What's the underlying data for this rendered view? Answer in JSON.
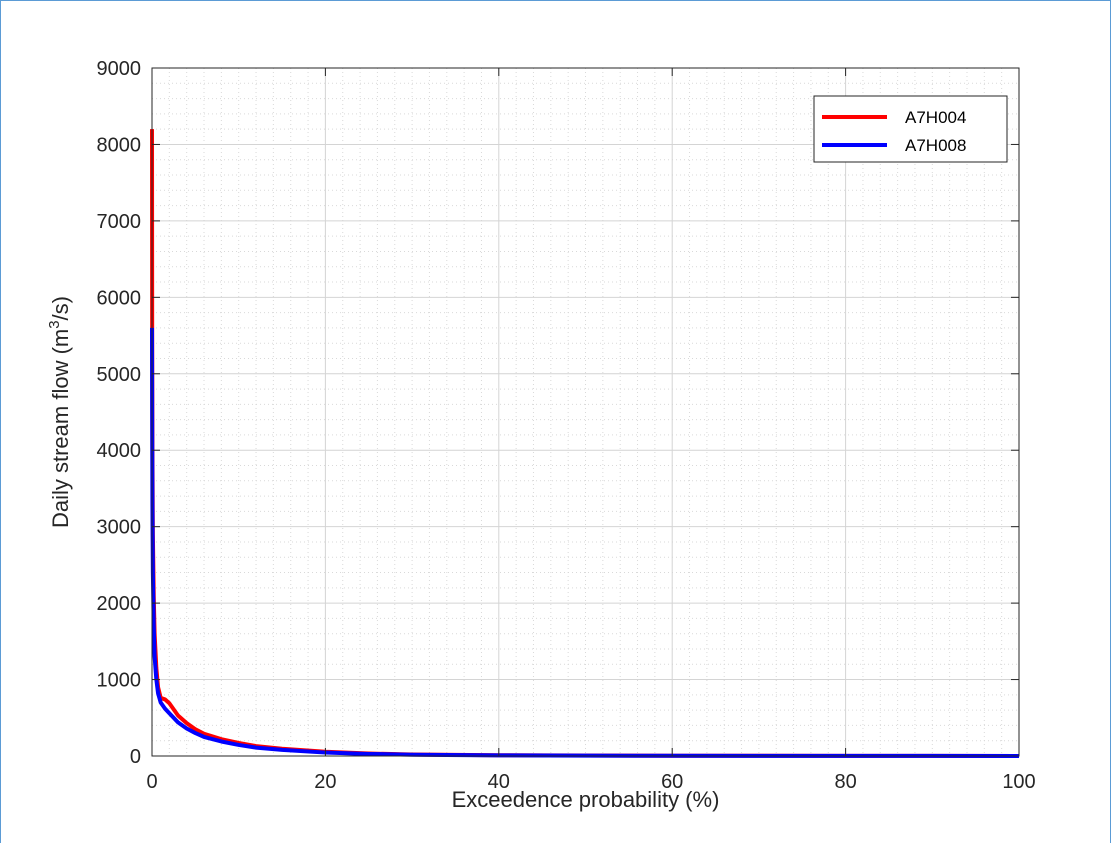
{
  "chart_data": {
    "type": "line",
    "title": "",
    "xlabel": "Exceedence probability (%)",
    "ylabel": {
      "prefix": "Daily stream flow (m",
      "superscript": "3",
      "suffix": "/s)"
    },
    "xlim": [
      0,
      100
    ],
    "ylim": [
      0,
      9000
    ],
    "x_ticks": [
      0,
      20,
      40,
      60,
      80,
      100
    ],
    "y_ticks": [
      0,
      1000,
      2000,
      3000,
      4000,
      5000,
      6000,
      7000,
      8000,
      9000
    ],
    "grid": true,
    "minor_grid": true,
    "legend_position": "top-right",
    "series": [
      {
        "name": "A7H004",
        "color": "#ff0000",
        "x": [
          0,
          0.02,
          0.05,
          0.1,
          0.2,
          0.3,
          0.5,
          0.7,
          1,
          1.5,
          2,
          3,
          4,
          5,
          6,
          8,
          10,
          12,
          15,
          20,
          25,
          30,
          40,
          50,
          60,
          70,
          80,
          90,
          100
        ],
        "y": [
          8200,
          5600,
          4000,
          2900,
          2100,
          1600,
          1150,
          900,
          760,
          740,
          690,
          530,
          430,
          350,
          290,
          220,
          170,
          130,
          95,
          55,
          32,
          20,
          10,
          6,
          4,
          3,
          2,
          1,
          0
        ]
      },
      {
        "name": "A7H008",
        "color": "#0000ff",
        "x": [
          0,
          0.02,
          0.05,
          0.1,
          0.2,
          0.3,
          0.5,
          0.7,
          1,
          1.5,
          2,
          3,
          4,
          5,
          6,
          8,
          10,
          12,
          15,
          20,
          25,
          30,
          40,
          50,
          60,
          70,
          80,
          90,
          100
        ],
        "y": [
          5600,
          4500,
          3300,
          2400,
          1700,
          1300,
          1000,
          820,
          700,
          620,
          560,
          440,
          360,
          300,
          250,
          190,
          145,
          110,
          80,
          45,
          27,
          17,
          8,
          5,
          3,
          2,
          1,
          1,
          0
        ]
      }
    ]
  }
}
